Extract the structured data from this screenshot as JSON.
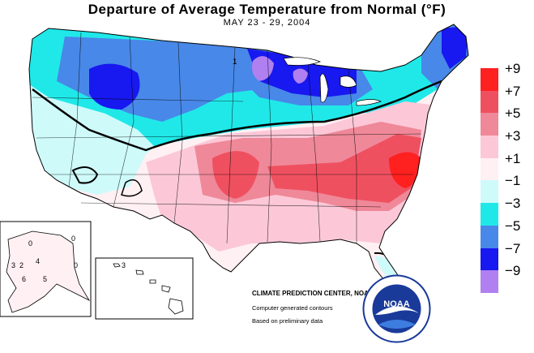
{
  "title": "Departure of Average Temperature from Normal (°F)",
  "subtitle": "MAY 23 - 29, 2004",
  "legend": [
    {
      "label": "+9",
      "color": "#ff2020"
    },
    {
      "label": "+7",
      "color": "#ef5060"
    },
    {
      "label": "+5",
      "color": "#ef8898"
    },
    {
      "label": "+3",
      "color": "#fcc8d8"
    },
    {
      "label": "+1",
      "color": "#fff0f3"
    },
    {
      "label": "−1",
      "color": "#cffafa"
    },
    {
      "label": "−3",
      "color": "#20e8e8"
    },
    {
      "label": "−5",
      "color": "#4888e8"
    },
    {
      "label": "−7",
      "color": "#1818f0"
    },
    {
      "label": "−9",
      "color": "#b080f0"
    }
  ],
  "credits": {
    "center": "CLIMATE PREDICTION CENTER, NOAA",
    "line1": "Computer generated contours",
    "line2": "Based on preliminary data"
  },
  "logo_text": "NOAA",
  "contour_labels": {
    "alaska": [
      "0",
      "2",
      "3",
      "4",
      "5",
      "6",
      "0",
      "0"
    ],
    "hawaii": [
      "3"
    ],
    "michigan": "1"
  }
}
